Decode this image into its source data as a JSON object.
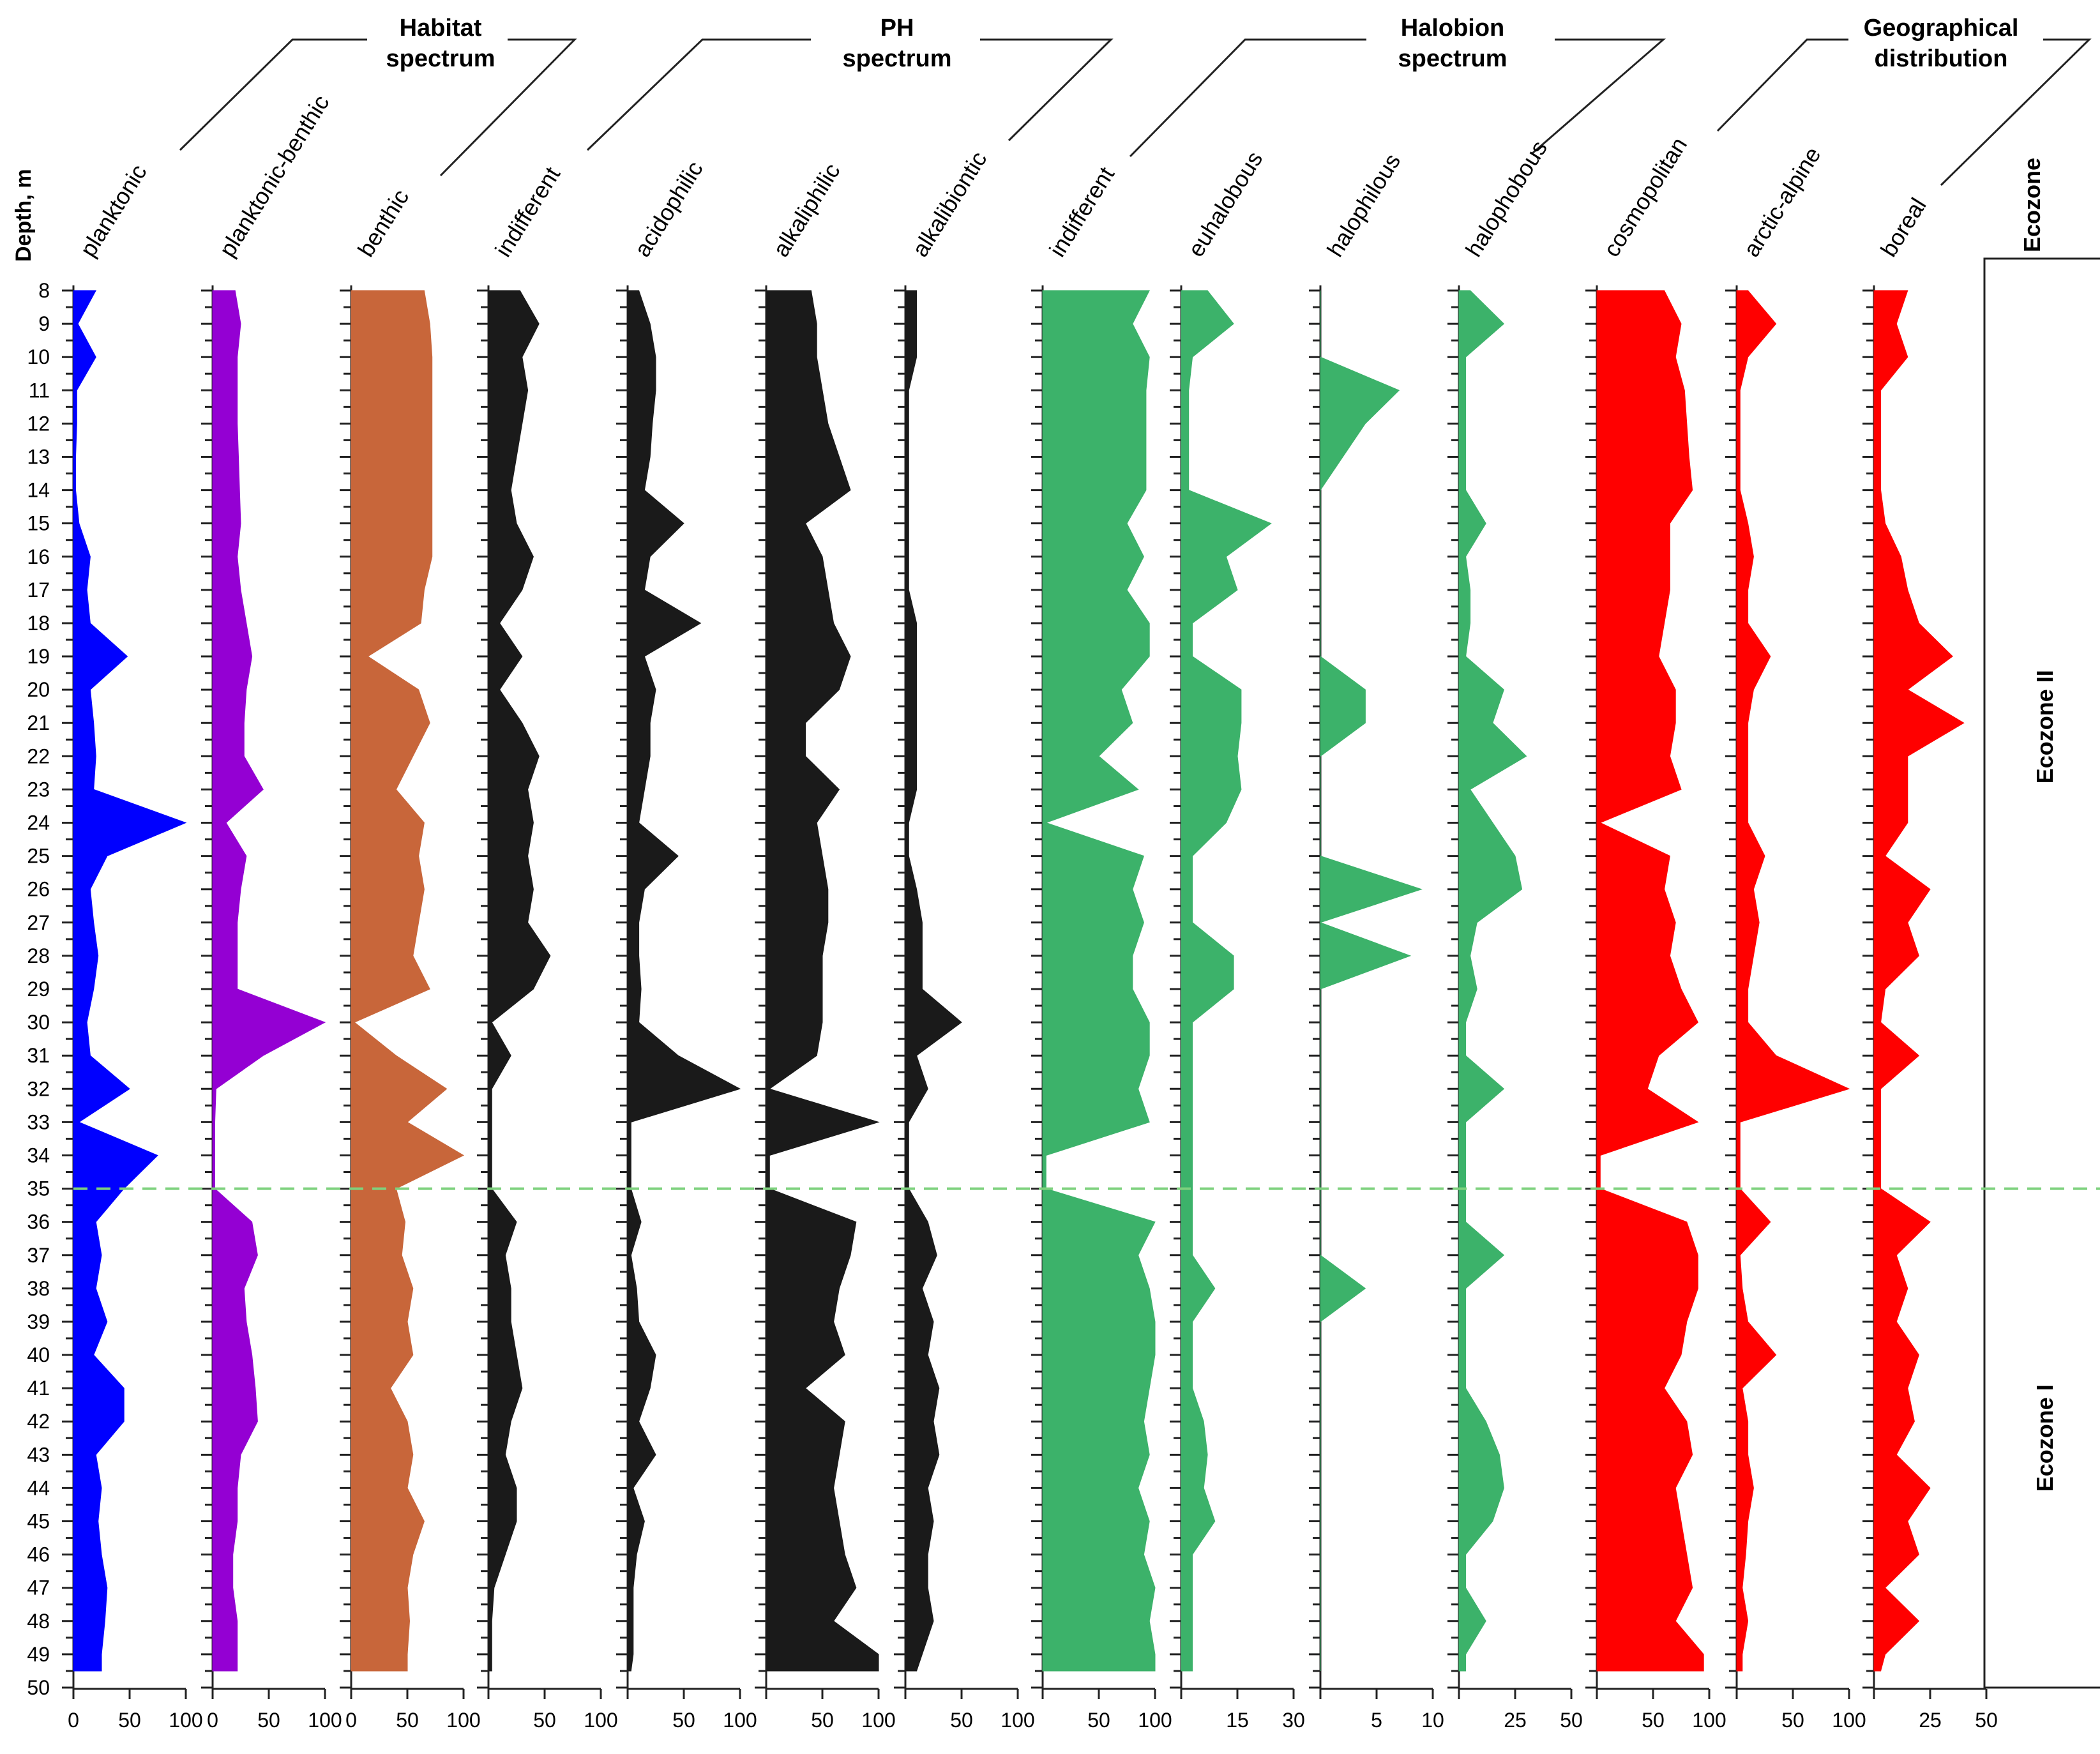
{
  "chart_data": {
    "type": "area",
    "title": "",
    "ylabel": "Depth, m",
    "depth_range": [
      8,
      50
    ],
    "depth_tick_labels": [
      "8",
      "9",
      "10",
      "11",
      "12",
      "13",
      "14",
      "15",
      "16",
      "17",
      "18",
      "19",
      "20",
      "21",
      "22",
      "23",
      "24",
      "25",
      "26",
      "27",
      "28",
      "29",
      "30",
      "31",
      "32",
      "33",
      "34",
      "35",
      "36",
      "37",
      "38",
      "39",
      "40",
      "41",
      "42",
      "43",
      "44",
      "45",
      "46",
      "47",
      "48",
      "49",
      "50"
    ],
    "boundary_depth": 35,
    "boundary_color": "#7ed17e",
    "depths": [
      8,
      9,
      10,
      11,
      12,
      13,
      14,
      15,
      16,
      17,
      18,
      19,
      20,
      21,
      22,
      23,
      24,
      25,
      26,
      27,
      28,
      29,
      30,
      31,
      32,
      33,
      34,
      35,
      36,
      37,
      38,
      39,
      40,
      41,
      42,
      43,
      44,
      45,
      46,
      47,
      48,
      49,
      49.5
    ],
    "groups": [
      {
        "title": "Habitat spectrum",
        "line1": "Habitat",
        "line2": "spectrum"
      },
      {
        "title": "PH spectrum",
        "line1": "PH",
        "line2": "spectrum"
      },
      {
        "title": "Halobion spectrum",
        "line1": "Halobion",
        "line2": "spectrum"
      },
      {
        "title": "Geographical distribution",
        "line1": "Geographical",
        "line2": "distribution"
      }
    ],
    "series": [
      {
        "name": "planktonic",
        "group": "Habitat spectrum",
        "color": "#0000ff",
        "max": 100,
        "tick_labels": [
          "0",
          "50",
          "100"
        ],
        "values": [
          20,
          4,
          20,
          3,
          3,
          2,
          2,
          5,
          15,
          12,
          15,
          48,
          15,
          18,
          20,
          18,
          100,
          30,
          15,
          18,
          22,
          18,
          12,
          15,
          50,
          5,
          75,
          45,
          20,
          25,
          20,
          30,
          18,
          45,
          45,
          20,
          25,
          22,
          25,
          30,
          28,
          25,
          25
        ]
      },
      {
        "name": "planktonic-benthic",
        "group": "Habitat spectrum",
        "color": "#9400d3",
        "max": 100,
        "tick_labels": [
          "0",
          "50",
          "100"
        ],
        "values": [
          20,
          25,
          22,
          22,
          22,
          23,
          24,
          25,
          22,
          25,
          30,
          35,
          30,
          28,
          28,
          45,
          12,
          30,
          25,
          22,
          22,
          22,
          100,
          45,
          3,
          2,
          2,
          2,
          35,
          40,
          28,
          30,
          35,
          38,
          40,
          25,
          22,
          22,
          18,
          18,
          22,
          22,
          22
        ]
      },
      {
        "name": "benthic",
        "group": "Habitat spectrum",
        "color": "#c8663a",
        "max": 100,
        "tick_labels": [
          "0",
          "50",
          "100"
        ],
        "values": [
          65,
          70,
          72,
          72,
          72,
          72,
          72,
          72,
          72,
          65,
          62,
          15,
          60,
          70,
          55,
          40,
          65,
          60,
          65,
          60,
          55,
          70,
          3,
          40,
          85,
          50,
          100,
          40,
          48,
          45,
          55,
          50,
          55,
          35,
          50,
          55,
          50,
          65,
          55,
          50,
          52,
          50,
          50
        ]
      },
      {
        "name": "indifferent",
        "group": "PH spectrum",
        "color": "#1a1a1a",
        "max": 100,
        "tick_labels": [
          "50",
          "100"
        ],
        "values": [
          28,
          45,
          30,
          35,
          30,
          25,
          20,
          25,
          40,
          30,
          10,
          30,
          10,
          30,
          45,
          35,
          40,
          35,
          40,
          35,
          55,
          40,
          3,
          20,
          3,
          3,
          3,
          3,
          25,
          15,
          20,
          20,
          25,
          30,
          20,
          15,
          25,
          25,
          15,
          5,
          3,
          3,
          3
        ]
      },
      {
        "name": "acidophilic",
        "group": "PH spectrum",
        "color": "#1a1a1a",
        "max": 100,
        "tick_labels": [
          "50",
          "100"
        ],
        "values": [
          10,
          20,
          25,
          25,
          22,
          20,
          15,
          50,
          20,
          15,
          65,
          15,
          25,
          20,
          20,
          15,
          10,
          45,
          15,
          10,
          10,
          12,
          10,
          45,
          100,
          3,
          3,
          3,
          12,
          3,
          8,
          10,
          25,
          20,
          10,
          25,
          5,
          15,
          8,
          5,
          5,
          5,
          3
        ]
      },
      {
        "name": "alkaliphilic",
        "group": "PH spectrum",
        "color": "#1a1a1a",
        "max": 100,
        "tick_labels": [
          "50",
          "100"
        ],
        "values": [
          40,
          45,
          45,
          50,
          55,
          65,
          75,
          35,
          50,
          55,
          60,
          75,
          65,
          35,
          35,
          65,
          45,
          50,
          55,
          55,
          50,
          50,
          50,
          45,
          3,
          100,
          3,
          3,
          80,
          75,
          65,
          60,
          70,
          35,
          70,
          65,
          60,
          65,
          70,
          80,
          60,
          100,
          100
        ]
      },
      {
        "name": "alkalibiontic",
        "group": "PH spectrum",
        "color": "#1a1a1a",
        "max": 100,
        "tick_labels": [
          "50",
          "100"
        ],
        "values": [
          10,
          10,
          10,
          3,
          3,
          3,
          3,
          3,
          3,
          3,
          10,
          10,
          10,
          10,
          10,
          10,
          3,
          3,
          10,
          15,
          15,
          15,
          50,
          10,
          20,
          3,
          3,
          3,
          20,
          28,
          15,
          25,
          20,
          30,
          25,
          30,
          20,
          25,
          20,
          20,
          25,
          15,
          10
        ]
      },
      {
        "name": "indifferent",
        "group": "Halobion spectrum",
        "color": "#3cb26a",
        "max": 100,
        "tick_labels": [
          "50",
          "100"
        ],
        "values": [
          95,
          80,
          95,
          92,
          92,
          92,
          92,
          75,
          90,
          75,
          95,
          95,
          70,
          80,
          50,
          85,
          3,
          90,
          80,
          90,
          80,
          80,
          95,
          95,
          85,
          95,
          3,
          3,
          100,
          85,
          95,
          100,
          100,
          95,
          90,
          95,
          85,
          95,
          90,
          100,
          95,
          100,
          100
        ]
      },
      {
        "name": "euhalobous",
        "group": "Halobion spectrum",
        "color": "#3cb26a",
        "max": 30,
        "tick_labels": [
          "15",
          "30"
        ],
        "values": [
          7,
          14,
          3,
          2,
          2,
          2,
          2,
          24,
          12,
          15,
          3,
          3,
          16,
          16,
          15,
          16,
          12,
          3,
          3,
          3,
          14,
          14,
          3,
          3,
          3,
          3,
          3,
          3,
          3,
          3,
          9,
          3,
          3,
          3,
          6,
          7,
          6,
          9,
          3,
          3,
          3,
          3,
          3
        ]
      },
      {
        "name": "halophilous",
        "group": "Halobion spectrum",
        "color": "#3cb26a",
        "max": 10,
        "tick_labels": [
          "5",
          "10"
        ],
        "values": [
          0,
          0,
          0,
          7,
          4,
          2,
          0,
          0,
          0,
          0,
          0,
          0,
          4,
          4,
          0,
          0,
          0,
          0,
          9,
          0,
          8,
          0,
          0,
          0,
          0,
          0,
          0,
          0,
          0,
          0,
          4,
          0,
          0,
          0,
          0,
          0,
          0,
          0,
          0,
          0,
          0,
          0,
          0
        ]
      },
      {
        "name": "halophobous",
        "group": "Halobion spectrum",
        "color": "#3cb26a",
        "max": 50,
        "tick_labels": [
          "25",
          "50"
        ],
        "values": [
          5,
          20,
          3,
          3,
          3,
          3,
          3,
          12,
          3,
          5,
          5,
          3,
          20,
          15,
          30,
          5,
          15,
          25,
          28,
          8,
          5,
          8,
          3,
          3,
          20,
          3,
          3,
          3,
          3,
          20,
          3,
          3,
          3,
          3,
          12,
          18,
          20,
          15,
          3,
          3,
          12,
          3,
          3
        ]
      },
      {
        "name": "cosmopolitan",
        "group": "Geographical distribution",
        "color": "#ff0000",
        "max": 100,
        "tick_labels": [
          "50",
          "100"
        ],
        "values": [
          60,
          75,
          70,
          78,
          80,
          82,
          85,
          65,
          65,
          65,
          60,
          55,
          70,
          70,
          65,
          75,
          3,
          65,
          60,
          70,
          65,
          75,
          90,
          55,
          45,
          90,
          3,
          3,
          80,
          90,
          90,
          80,
          75,
          60,
          80,
          85,
          70,
          75,
          80,
          85,
          70,
          95,
          95
        ]
      },
      {
        "name": "arctic-alpine",
        "group": "Geographical distribution",
        "color": "#ff0000",
        "max": 100,
        "tick_labels": [
          "50",
          "100"
        ],
        "values": [
          10,
          35,
          10,
          3,
          3,
          3,
          3,
          10,
          15,
          10,
          10,
          30,
          15,
          10,
          10,
          10,
          10,
          25,
          15,
          20,
          15,
          10,
          10,
          35,
          100,
          3,
          3,
          3,
          30,
          3,
          5,
          10,
          35,
          5,
          10,
          10,
          15,
          10,
          8,
          5,
          10,
          5,
          5
        ]
      },
      {
        "name": "boreal",
        "group": "Geographical distribution",
        "color": "#ff0000",
        "max": 50,
        "tick_labels": [
          "25",
          "50"
        ],
        "values": [
          15,
          10,
          15,
          3,
          3,
          3,
          3,
          5,
          12,
          15,
          20,
          35,
          15,
          40,
          15,
          15,
          15,
          5,
          25,
          15,
          20,
          5,
          3,
          20,
          3,
          3,
          3,
          3,
          25,
          10,
          15,
          10,
          20,
          15,
          18,
          10,
          25,
          15,
          20,
          5,
          20,
          5,
          3
        ]
      }
    ],
    "ecozone": {
      "column_title": "Ecozone",
      "zones": [
        {
          "name": "Ecozone II",
          "from": 8,
          "to": 35
        },
        {
          "name": "Ecozone I",
          "from": 35,
          "to": 50
        }
      ]
    }
  }
}
